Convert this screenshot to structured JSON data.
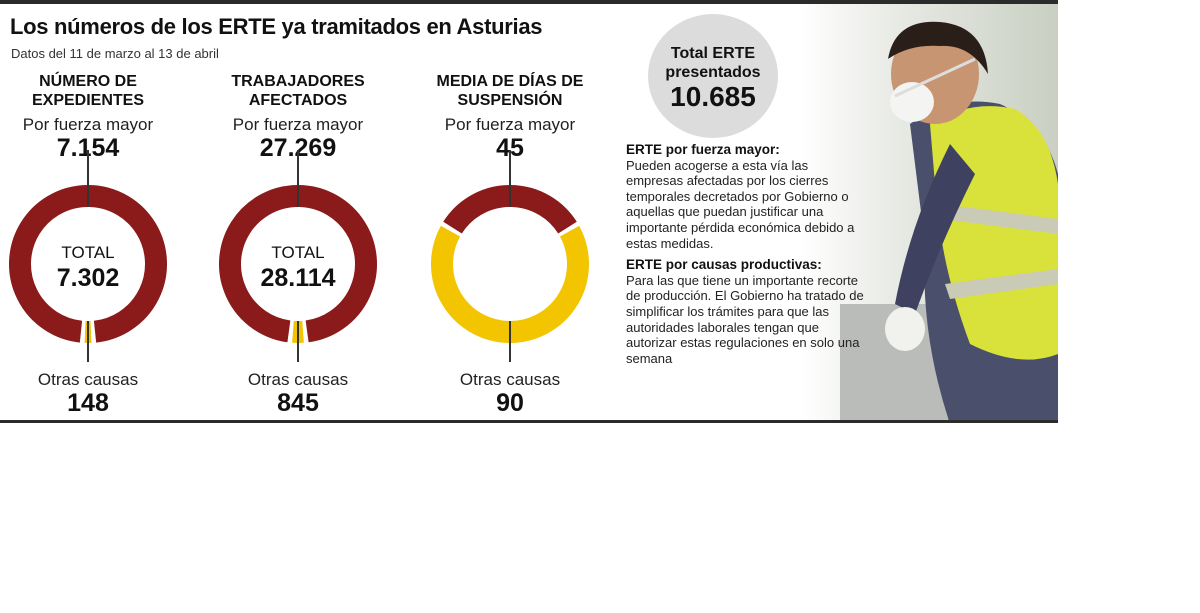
{
  "title": "Los números de los ERTE ya tramitados en Asturias",
  "subtitle": "Datos del 11 de marzo al 13 de abril",
  "chart_data": [
    {
      "type": "pie",
      "title": "NÚMERO DE EXPEDIENTES",
      "categories": [
        "Por fuerza mayor",
        "Otras causas"
      ],
      "values": [
        7154,
        148
      ],
      "value_labels": [
        "7.154",
        "148"
      ],
      "total_label": "TOTAL",
      "total": "7.302",
      "colors": [
        "#8b1a1a",
        "#f2c500"
      ]
    },
    {
      "type": "pie",
      "title": "TRABAJADORES AFECTADOS",
      "categories": [
        "Por fuerza mayor",
        "Otras causas"
      ],
      "values": [
        27269,
        845
      ],
      "value_labels": [
        "27.269",
        "845"
      ],
      "total_label": "TOTAL",
      "total": "28.114",
      "colors": [
        "#8b1a1a",
        "#f2c500"
      ]
    },
    {
      "type": "pie",
      "title": "MEDIA DE DÍAS DE SUSPENSIÓN",
      "categories": [
        "Por fuerza mayor",
        "Otras causas"
      ],
      "values": [
        45,
        90
      ],
      "value_labels": [
        "45",
        "90"
      ],
      "total_label": "",
      "total": "",
      "colors": [
        "#8b1a1a",
        "#f2c500"
      ]
    }
  ],
  "total_badge": {
    "label": "Total ERTE presentados",
    "value": "10.685"
  },
  "notes": [
    {
      "heading": "ERTE por fuerza mayor:",
      "text": "Pueden acogerse a esta vía las empresas afectadas por los cierres temporales decretados por Gobierno o aquellas que puedan justificar una importante pérdida económica debido a estas medidas."
    },
    {
      "heading": "ERTE por causas productivas:",
      "text": "Para las que tiene un importante recorte de producción. El Gobierno ha tratado de simplificar los trámites para que las autoridades laborales tengan que autorizar estas regulaciones en solo una semana"
    }
  ]
}
